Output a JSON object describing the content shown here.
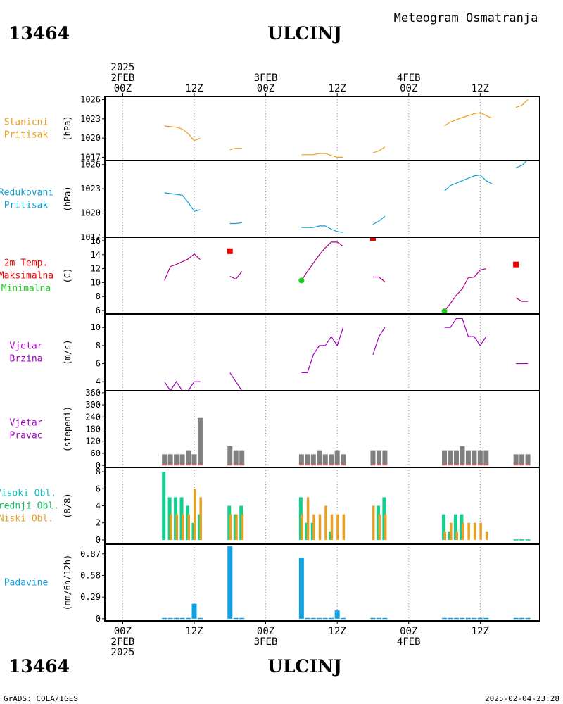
{
  "header": {
    "station_id": "13464",
    "station_name": "ULCINJ",
    "subtitle": "Meteogram Osmatranja"
  },
  "time_axis": {
    "top_labels": [
      {
        "hour": 0,
        "lines": [
          "2025",
          "2FEB",
          "00Z"
        ]
      },
      {
        "hour": 12,
        "lines": [
          "12Z"
        ]
      },
      {
        "hour": 24,
        "lines": [
          "3FEB",
          "00Z"
        ]
      },
      {
        "hour": 36,
        "lines": [
          "12Z"
        ]
      },
      {
        "hour": 48,
        "lines": [
          "4FEB",
          "00Z"
        ]
      },
      {
        "hour": 60,
        "lines": [
          "12Z"
        ]
      }
    ],
    "bottom_labels": [
      {
        "hour": 0,
        "lines": [
          "00Z",
          "2FEB",
          "2025"
        ]
      },
      {
        "hour": 12,
        "lines": [
          "12Z"
        ]
      },
      {
        "hour": 24,
        "lines": [
          "00Z",
          "3FEB"
        ]
      },
      {
        "hour": 36,
        "lines": [
          "12Z"
        ]
      },
      {
        "hour": 48,
        "lines": [
          "00Z",
          "4FEB"
        ]
      },
      {
        "hour": 60,
        "lines": [
          "12Z"
        ]
      }
    ],
    "x_range_hours": [
      -3,
      70
    ]
  },
  "footer": {
    "credit": "GrADS: COLA/IGES",
    "timestamp": "2025-02-04-23:28"
  },
  "colors": {
    "station_pressure": "#e8a020",
    "reduced_pressure": "#10a0d0",
    "temperature": "#b0008c",
    "max_marker": "#ee0000",
    "min_marker": "#22cc22",
    "wind_speed": "#a000c0",
    "wind_dir_bar": "#808080",
    "wind_dir_base": "#d06060",
    "high_cloud": "#10d08c",
    "mid_cloud": "#30c0c0",
    "low_cloud": "#e8a020",
    "precip": "#10a0e0",
    "label_wind": "#a000c0",
    "label_clouds_high": "#10c0c0",
    "label_clouds_mid": "#10c060"
  },
  "chart_data": [
    {
      "type": "line",
      "panel": "station_pressure",
      "labels": [
        "Stanicni",
        "Pritisak"
      ],
      "ylabel": "(hPa)",
      "ylim": [
        1016.5,
        1026.5
      ],
      "yticks": [
        1017,
        1020,
        1023,
        1026
      ],
      "segments": [
        [
          [
            7,
            1021.9
          ],
          [
            9,
            1021.7
          ],
          [
            10,
            1021.4
          ],
          [
            11,
            1020.7
          ],
          [
            12,
            1019.6
          ],
          [
            13,
            1020.0
          ]
        ],
        [
          [
            18,
            1018.2
          ],
          [
            19,
            1018.4
          ],
          [
            20,
            1018.4
          ]
        ],
        [
          [
            30,
            1017.4
          ],
          [
            32,
            1017.4
          ],
          [
            33,
            1017.6
          ],
          [
            34,
            1017.6
          ],
          [
            35,
            1017.3
          ],
          [
            36,
            1017.0
          ],
          [
            37,
            1017.0
          ]
        ],
        [
          [
            42,
            1017.7
          ],
          [
            43,
            1018.0
          ],
          [
            44,
            1018.6
          ]
        ],
        [
          [
            54,
            1021.9
          ],
          [
            55,
            1022.5
          ],
          [
            57,
            1023.2
          ],
          [
            59,
            1023.8
          ],
          [
            60,
            1024.0
          ],
          [
            61,
            1023.5
          ],
          [
            62,
            1023.1
          ]
        ],
        [
          [
            66,
            1024.8
          ],
          [
            67,
            1025.1
          ],
          [
            68,
            1026.0
          ]
        ]
      ]
    },
    {
      "type": "line",
      "panel": "reduced_pressure",
      "labels": [
        "Redukovani",
        "Pritisak"
      ],
      "ylabel": "(hPa)",
      "ylim": [
        1017,
        1026.5
      ],
      "yticks": [
        1017,
        1020,
        1023,
        1026
      ],
      "segments": [
        [
          [
            7,
            1022.5
          ],
          [
            8,
            1022.4
          ],
          [
            10,
            1022.2
          ],
          [
            11,
            1021.3
          ],
          [
            12,
            1020.2
          ],
          [
            13,
            1020.4
          ]
        ],
        [
          [
            18,
            1018.7
          ],
          [
            19,
            1018.7
          ],
          [
            20,
            1018.8
          ]
        ],
        [
          [
            30,
            1018.2
          ],
          [
            32,
            1018.2
          ],
          [
            33,
            1018.4
          ],
          [
            34,
            1018.4
          ],
          [
            35,
            1018.0
          ],
          [
            36,
            1017.7
          ],
          [
            37,
            1017.6
          ]
        ],
        [
          [
            42,
            1018.6
          ],
          [
            43,
            1019.0
          ],
          [
            44,
            1019.6
          ]
        ],
        [
          [
            54,
            1022.7
          ],
          [
            55,
            1023.4
          ],
          [
            57,
            1024.0
          ],
          [
            59,
            1024.6
          ],
          [
            60,
            1024.7
          ],
          [
            61,
            1024.0
          ],
          [
            62,
            1023.6
          ]
        ],
        [
          [
            66,
            1025.6
          ],
          [
            67,
            1025.9
          ],
          [
            68,
            1026.6
          ]
        ]
      ]
    },
    {
      "type": "line",
      "panel": "temperature",
      "labels": [
        "2m Temp.",
        "Maksimalna",
        "Minimalna"
      ],
      "ylabel": "(C)",
      "ylim": [
        5.5,
        16.5
      ],
      "yticks": [
        6,
        8,
        10,
        12,
        14,
        16
      ],
      "segments": [
        [
          [
            7,
            10.3
          ],
          [
            8,
            12.3
          ],
          [
            9,
            12.6
          ],
          [
            10,
            13.0
          ],
          [
            11,
            13.4
          ],
          [
            12,
            14.1
          ],
          [
            13,
            13.3
          ]
        ],
        [
          [
            18,
            10.9
          ],
          [
            19,
            10.5
          ],
          [
            20,
            11.6
          ]
        ],
        [
          [
            30,
            10.3
          ],
          [
            31,
            11.6
          ],
          [
            32,
            12.8
          ],
          [
            33,
            14.0
          ],
          [
            34,
            15.0
          ],
          [
            35,
            15.8
          ],
          [
            36,
            15.8
          ],
          [
            37,
            15.2
          ]
        ],
        [
          [
            42,
            10.8
          ],
          [
            43,
            10.8
          ],
          [
            44,
            10.1
          ]
        ],
        [
          [
            54,
            5.9
          ],
          [
            55,
            7.0
          ],
          [
            56,
            8.2
          ],
          [
            57,
            9.1
          ],
          [
            58,
            10.7
          ],
          [
            59,
            10.8
          ],
          [
            60,
            11.8
          ],
          [
            61,
            12.0
          ]
        ],
        [
          [
            66,
            7.8
          ],
          [
            67,
            7.3
          ],
          [
            68,
            7.3
          ]
        ]
      ],
      "max_points": [
        [
          18,
          14.5
        ],
        [
          42,
          16.4
        ],
        [
          66,
          12.6
        ]
      ],
      "min_points": [
        [
          30,
          10.3
        ],
        [
          54,
          5.9
        ]
      ]
    },
    {
      "type": "line",
      "panel": "wind_speed",
      "labels": [
        "Vjetar",
        "Brzina"
      ],
      "ylabel": "(m/s)",
      "ylim": [
        3,
        11.5
      ],
      "yticks": [
        4,
        6,
        8,
        10
      ],
      "segments": [
        [
          [
            7,
            4
          ],
          [
            8,
            3
          ],
          [
            9,
            4
          ],
          [
            10,
            3
          ],
          [
            11,
            3
          ],
          [
            12,
            4
          ],
          [
            13,
            4
          ]
        ],
        [
          [
            18,
            5
          ],
          [
            19,
            4
          ],
          [
            20,
            3
          ]
        ],
        [
          [
            30,
            5
          ],
          [
            31,
            5
          ],
          [
            32,
            7
          ],
          [
            33,
            8
          ],
          [
            34,
            8
          ],
          [
            35,
            9
          ],
          [
            36,
            8
          ],
          [
            37,
            10
          ]
        ],
        [
          [
            42,
            7
          ],
          [
            43,
            9
          ],
          [
            44,
            10
          ]
        ],
        [
          [
            54,
            10
          ],
          [
            55,
            10
          ],
          [
            56,
            11
          ],
          [
            57,
            11
          ],
          [
            58,
            9
          ],
          [
            59,
            9
          ],
          [
            60,
            8
          ],
          [
            61,
            9
          ]
        ],
        [
          [
            66,
            6
          ],
          [
            67,
            6
          ],
          [
            68,
            6
          ]
        ]
      ]
    },
    {
      "type": "bar",
      "panel": "wind_direction",
      "labels": [
        "Vjetar",
        "Pravac"
      ],
      "ylabel": "(stepeni)",
      "ylim": [
        -10,
        370
      ],
      "yticks": [
        0,
        60,
        120,
        180,
        240,
        300,
        360
      ],
      "bars": [
        [
          7,
          55
        ],
        [
          8,
          55
        ],
        [
          9,
          55
        ],
        [
          10,
          55
        ],
        [
          11,
          75
        ],
        [
          12,
          55
        ],
        [
          13,
          235
        ],
        [
          18,
          95
        ],
        [
          19,
          75
        ],
        [
          20,
          75
        ],
        [
          30,
          55
        ],
        [
          31,
          55
        ],
        [
          32,
          55
        ],
        [
          33,
          75
        ],
        [
          34,
          55
        ],
        [
          35,
          55
        ],
        [
          36,
          75
        ],
        [
          37,
          55
        ],
        [
          42,
          75
        ],
        [
          43,
          75
        ],
        [
          44,
          75
        ],
        [
          54,
          75
        ],
        [
          55,
          75
        ],
        [
          56,
          75
        ],
        [
          57,
          95
        ],
        [
          58,
          75
        ],
        [
          59,
          75
        ],
        [
          60,
          75
        ],
        [
          61,
          75
        ],
        [
          66,
          55
        ],
        [
          67,
          55
        ],
        [
          68,
          55
        ]
      ]
    },
    {
      "type": "bar",
      "panel": "clouds",
      "labels": [
        "Visoki Obl.",
        "Srednji Obl.",
        "Niski Obl."
      ],
      "ylabel": "(8/8)",
      "ylim": [
        -0.5,
        8.5
      ],
      "yticks": [
        0,
        2,
        4,
        6,
        8
      ],
      "bars": [
        [
          7,
          8,
          0,
          0
        ],
        [
          8,
          5,
          0,
          3
        ],
        [
          9,
          5,
          0,
          3
        ],
        [
          10,
          5,
          0,
          3
        ],
        [
          11,
          4,
          0,
          3
        ],
        [
          12,
          2,
          0,
          6
        ],
        [
          13,
          3,
          0,
          5
        ],
        [
          18,
          4,
          0,
          3
        ],
        [
          19,
          3,
          0,
          3
        ],
        [
          20,
          4,
          0,
          3
        ],
        [
          30,
          5,
          0,
          3
        ],
        [
          31,
          2,
          0,
          5
        ],
        [
          32,
          2,
          0,
          3
        ],
        [
          33,
          0,
          0,
          3
        ],
        [
          34,
          0,
          0,
          4
        ],
        [
          35,
          1,
          0,
          3
        ],
        [
          36,
          0,
          0,
          3
        ],
        [
          37,
          0,
          0,
          3
        ],
        [
          42,
          0,
          0,
          4
        ],
        [
          43,
          4,
          0,
          3
        ],
        [
          44,
          5,
          0,
          3
        ],
        [
          54,
          3,
          0,
          1
        ],
        [
          55,
          1,
          0,
          2
        ],
        [
          56,
          3,
          0,
          1
        ],
        [
          57,
          3,
          0,
          2
        ],
        [
          58,
          0,
          0,
          2
        ],
        [
          59,
          0,
          0,
          2
        ],
        [
          60,
          0,
          0,
          2
        ],
        [
          61,
          0,
          0,
          1
        ],
        [
          66,
          0,
          0,
          0
        ],
        [
          67,
          0,
          0,
          0
        ],
        [
          68,
          0,
          0,
          0
        ]
      ]
    },
    {
      "type": "bar",
      "panel": "precipitation",
      "labels": [
        "Padavine"
      ],
      "ylabel": "(mm/6h/12h)",
      "ylim": [
        -0.03,
        1.0
      ],
      "yticks": [
        0,
        0.29,
        0.58,
        0.87
      ],
      "ytick_labels": [
        "0",
        "0.29",
        "0.58",
        "0.87"
      ],
      "bars": [
        [
          7,
          0.01
        ],
        [
          8,
          0.01
        ],
        [
          9,
          0.01
        ],
        [
          10,
          0.01
        ],
        [
          11,
          0.01
        ],
        [
          12,
          0.2
        ],
        [
          13,
          0.01
        ],
        [
          18,
          0.97
        ],
        [
          19,
          0.01
        ],
        [
          20,
          0.01
        ],
        [
          30,
          0.82
        ],
        [
          31,
          0.01
        ],
        [
          32,
          0.01
        ],
        [
          33,
          0.01
        ],
        [
          34,
          0.01
        ],
        [
          35,
          0.01
        ],
        [
          36,
          0.11
        ],
        [
          37,
          0.01
        ],
        [
          42,
          0.01
        ],
        [
          43,
          0.01
        ],
        [
          44,
          0.01
        ],
        [
          54,
          0.01
        ],
        [
          55,
          0.01
        ],
        [
          56,
          0.01
        ],
        [
          57,
          0.01
        ],
        [
          58,
          0.01
        ],
        [
          59,
          0.01
        ],
        [
          60,
          0.01
        ],
        [
          61,
          0.01
        ],
        [
          66,
          0.01
        ],
        [
          67,
          0.01
        ],
        [
          68,
          0.01
        ]
      ]
    }
  ]
}
